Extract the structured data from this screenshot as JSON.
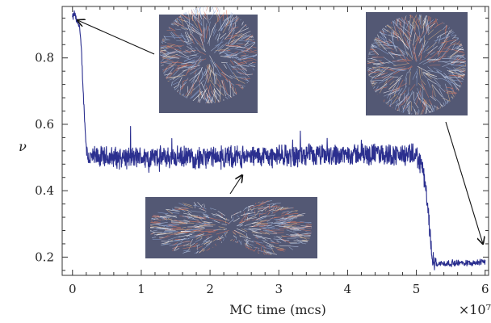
{
  "chart_data": {
    "type": "line",
    "xlabel": "MC time (mcs)",
    "ylabel": "ν",
    "x_multiplier_label": "×10⁷",
    "xlim": [
      -0.15,
      6.05
    ],
    "ylim": [
      0.145,
      0.955
    ],
    "x_ticks": [
      0,
      1,
      2,
      3,
      4,
      5,
      6
    ],
    "y_ticks": [
      0.2,
      0.4,
      0.6,
      0.8
    ],
    "grid": false,
    "legend": "none",
    "series": [
      {
        "color": "#2b2f8f",
        "noise_amplitude": 0.035,
        "points": [
          [
            0.0,
            0.92
          ],
          [
            0.03,
            0.935
          ],
          [
            0.06,
            0.91
          ],
          [
            0.1,
            0.9
          ],
          [
            0.13,
            0.82
          ],
          [
            0.16,
            0.68
          ],
          [
            0.19,
            0.56
          ],
          [
            0.22,
            0.5
          ],
          [
            0.3,
            0.5
          ],
          [
            1.0,
            0.5
          ],
          [
            2.0,
            0.5
          ],
          [
            3.0,
            0.505
          ],
          [
            3.5,
            0.505
          ],
          [
            4.0,
            0.51
          ],
          [
            4.5,
            0.51
          ],
          [
            5.0,
            0.505
          ],
          [
            5.08,
            0.48
          ],
          [
            5.15,
            0.38
          ],
          [
            5.2,
            0.27
          ],
          [
            5.24,
            0.2
          ],
          [
            5.3,
            0.18
          ],
          [
            6.0,
            0.185
          ]
        ]
      }
    ],
    "annotations": [
      {
        "inset": "spherical-vesicle",
        "points_to": [
          0.05,
          0.92
        ]
      },
      {
        "inset": "dumbbell-vesicle",
        "points_to": [
          2.5,
          0.51
        ]
      },
      {
        "inset": "spherical-vesicle-final",
        "points_to": [
          5.95,
          0.2
        ]
      }
    ]
  }
}
